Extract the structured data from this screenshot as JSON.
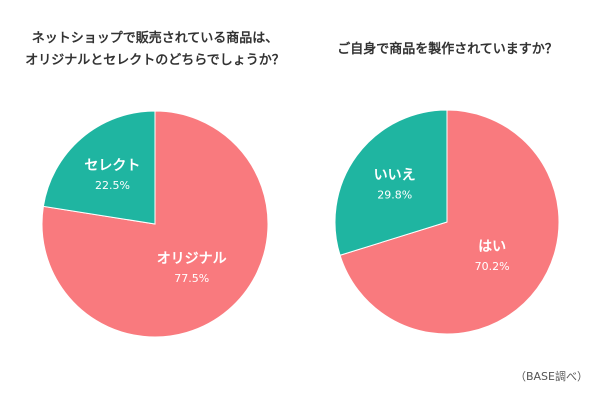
{
  "chart_data": [
    {
      "type": "pie",
      "title_line1": "ネットショップで販売されている商品は、",
      "title_line2": "オリジナルとセレクトのどちらでしょうか？",
      "slices": [
        {
          "label": "オリジナル",
          "value": 77.5,
          "display": "77.5%",
          "color": "#F97A7E"
        },
        {
          "label": "セレクト",
          "value": 22.5,
          "display": "22.5%",
          "color": "#1FB5A1"
        }
      ]
    },
    {
      "type": "pie",
      "title_line1": "ご自身で商品を製作されていますか？",
      "title_line2": "",
      "slices": [
        {
          "label": "はい",
          "value": 70.2,
          "display": "70.2%",
          "color": "#F97A7E"
        },
        {
          "label": "いいえ",
          "value": 29.8,
          "display": "29.8%",
          "color": "#1FB5A1"
        }
      ]
    }
  ],
  "source_note": "（BASE調べ）"
}
